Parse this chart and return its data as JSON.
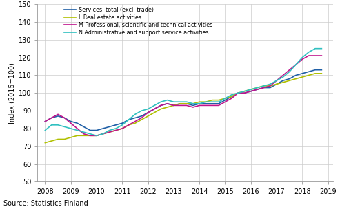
{
  "ylabel": "Index (2015=100)",
  "source": "Source: Statistics Finland",
  "xlim": [
    2007.7,
    2019.2
  ],
  "ylim": [
    50,
    150
  ],
  "yticks": [
    50,
    60,
    70,
    80,
    90,
    100,
    110,
    120,
    130,
    140,
    150
  ],
  "xticks": [
    2008,
    2009,
    2010,
    2011,
    2012,
    2013,
    2014,
    2015,
    2016,
    2017,
    2018,
    2019
  ],
  "series": {
    "Services, total (excl. trade)": {
      "color": "#1f5fa6",
      "linewidth": 1.2,
      "data_x": [
        2008.0,
        2008.25,
        2008.5,
        2008.75,
        2009.0,
        2009.25,
        2009.5,
        2009.75,
        2010.0,
        2010.25,
        2010.5,
        2010.75,
        2011.0,
        2011.25,
        2011.5,
        2011.75,
        2012.0,
        2012.25,
        2012.5,
        2012.75,
        2013.0,
        2013.25,
        2013.5,
        2013.75,
        2014.0,
        2014.25,
        2014.5,
        2014.75,
        2015.0,
        2015.25,
        2015.5,
        2015.75,
        2016.0,
        2016.25,
        2016.5,
        2016.75,
        2017.0,
        2017.25,
        2017.5,
        2017.75,
        2018.0,
        2018.25,
        2018.5,
        2018.75
      ],
      "data_y": [
        84,
        86,
        87,
        86,
        84,
        83,
        81,
        79,
        79,
        80,
        81,
        82,
        83,
        85,
        86,
        87,
        89,
        91,
        93,
        94,
        93,
        94,
        94,
        93,
        94,
        94,
        94,
        94,
        96,
        98,
        100,
        100,
        101,
        102,
        103,
        103,
        105,
        107,
        108,
        110,
        111,
        112,
        113,
        113
      ]
    },
    "L Real estate activities": {
      "color": "#b0c000",
      "linewidth": 1.2,
      "data_x": [
        2008.0,
        2008.25,
        2008.5,
        2008.75,
        2009.0,
        2009.25,
        2009.5,
        2009.75,
        2010.0,
        2010.25,
        2010.5,
        2010.75,
        2011.0,
        2011.25,
        2011.5,
        2011.75,
        2012.0,
        2012.25,
        2012.5,
        2012.75,
        2013.0,
        2013.25,
        2013.5,
        2013.75,
        2014.0,
        2014.25,
        2014.5,
        2014.75,
        2015.0,
        2015.25,
        2015.5,
        2015.75,
        2016.0,
        2016.25,
        2016.5,
        2016.75,
        2017.0,
        2017.25,
        2017.5,
        2017.75,
        2018.0,
        2018.25,
        2018.5,
        2018.75
      ],
      "data_y": [
        72,
        73,
        74,
        74,
        75,
        76,
        76,
        76,
        76,
        77,
        78,
        79,
        80,
        82,
        83,
        85,
        87,
        89,
        91,
        92,
        93,
        94,
        94,
        94,
        95,
        95,
        96,
        96,
        97,
        98,
        100,
        101,
        102,
        103,
        104,
        104,
        105,
        106,
        107,
        108,
        109,
        110,
        111,
        111
      ]
    },
    "M Professional, scientific and technical activities": {
      "color": "#c0148c",
      "linewidth": 1.2,
      "data_x": [
        2008.0,
        2008.25,
        2008.5,
        2008.75,
        2009.0,
        2009.25,
        2009.5,
        2009.75,
        2010.0,
        2010.25,
        2010.5,
        2010.75,
        2011.0,
        2011.25,
        2011.5,
        2011.75,
        2012.0,
        2012.25,
        2012.5,
        2012.75,
        2013.0,
        2013.25,
        2013.5,
        2013.75,
        2014.0,
        2014.25,
        2014.5,
        2014.75,
        2015.0,
        2015.25,
        2015.5,
        2015.75,
        2016.0,
        2016.25,
        2016.5,
        2016.75,
        2017.0,
        2017.25,
        2017.5,
        2017.75,
        2018.0,
        2018.25,
        2018.5,
        2018.75
      ],
      "data_y": [
        84,
        86,
        88,
        86,
        83,
        80,
        77,
        76,
        76,
        77,
        78,
        79,
        80,
        82,
        84,
        86,
        89,
        91,
        93,
        94,
        93,
        93,
        93,
        92,
        93,
        93,
        93,
        93,
        95,
        97,
        100,
        100,
        101,
        102,
        103,
        104,
        107,
        110,
        113,
        116,
        119,
        121,
        121,
        121
      ]
    },
    "N Administrative and support service activities": {
      "color": "#30c0c0",
      "linewidth": 1.2,
      "data_x": [
        2008.0,
        2008.25,
        2008.5,
        2008.75,
        2009.0,
        2009.25,
        2009.5,
        2009.75,
        2010.0,
        2010.25,
        2010.5,
        2010.75,
        2011.0,
        2011.25,
        2011.5,
        2011.75,
        2012.0,
        2012.25,
        2012.5,
        2012.75,
        2013.0,
        2013.25,
        2013.5,
        2013.75,
        2014.0,
        2014.25,
        2014.5,
        2014.75,
        2015.0,
        2015.25,
        2015.5,
        2015.75,
        2016.0,
        2016.25,
        2016.5,
        2016.75,
        2017.0,
        2017.25,
        2017.5,
        2017.75,
        2018.0,
        2018.25,
        2018.5,
        2018.75
      ],
      "data_y": [
        79,
        82,
        82,
        81,
        80,
        79,
        78,
        77,
        76,
        77,
        79,
        80,
        82,
        85,
        88,
        90,
        91,
        93,
        95,
        96,
        95,
        95,
        95,
        94,
        94,
        95,
        95,
        95,
        97,
        99,
        100,
        101,
        102,
        103,
        104,
        105,
        107,
        109,
        112,
        116,
        120,
        123,
        125,
        125
      ]
    }
  },
  "legend_order": [
    "Services, total (excl. trade)",
    "L Real estate activities",
    "M Professional, scientific and technical activities",
    "N Administrative and support service activities"
  ],
  "bg_color": "#ffffff",
  "grid_color": "#cccccc"
}
